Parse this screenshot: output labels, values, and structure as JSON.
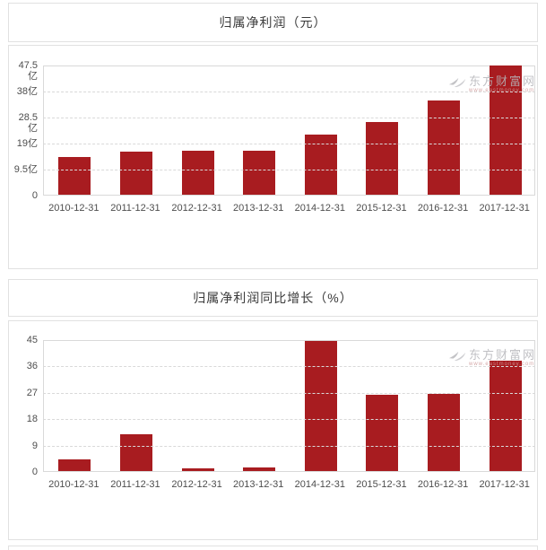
{
  "colors": {
    "bar": "#a81c20",
    "panel_border": "#e1e1e1",
    "plot_border": "#d9d9d9",
    "gridline": "#d9d9d9",
    "axis_text": "#4d4d4d",
    "title_text": "#3a3a3a",
    "watermark_text": "#b6b6ba",
    "watermark_url_text": "#cf9a9a"
  },
  "watermark": {
    "brand": "东方财富网",
    "url": "www.eastmoney.com"
  },
  "chart_data": [
    {
      "type": "bar",
      "title": "归属净利润（元）",
      "categories": [
        "2010-12-31",
        "2011-12-31",
        "2012-12-31",
        "2013-12-31",
        "2014-12-31",
        "2015-12-31",
        "2016-12-31",
        "2017-12-31"
      ],
      "values": [
        13.6,
        15.7,
        16.0,
        15.9,
        21.8,
        26.6,
        34.5,
        47.3
      ],
      "unit": "亿",
      "ylim": [
        0,
        47.5
      ],
      "y_ticks": [
        0,
        9.5,
        19,
        28.5,
        38,
        47.5
      ],
      "y_tick_labels": [
        "0",
        "9.5亿",
        "19亿",
        "28.5亿",
        "38亿",
        "47.5亿"
      ],
      "xlabel": "",
      "ylabel": "",
      "grid": "horizontal-dashed",
      "legend": "none"
    },
    {
      "type": "bar",
      "title": "归属净利润同比增长（%）",
      "categories": [
        "2010-12-31",
        "2011-12-31",
        "2012-12-31",
        "2013-12-31",
        "2014-12-31",
        "2015-12-31",
        "2016-12-31",
        "2017-12-31"
      ],
      "values": [
        3.9,
        12.7,
        0.9,
        1.2,
        44.5,
        26.1,
        26.4,
        37.8
      ],
      "unit": "%",
      "ylim": [
        0,
        45
      ],
      "y_ticks": [
        0,
        9,
        18,
        27,
        36,
        45
      ],
      "y_tick_labels": [
        "0",
        "9",
        "18",
        "27",
        "36",
        "45"
      ],
      "xlabel": "",
      "ylabel": "",
      "grid": "horizontal-dashed",
      "legend": "none"
    }
  ]
}
